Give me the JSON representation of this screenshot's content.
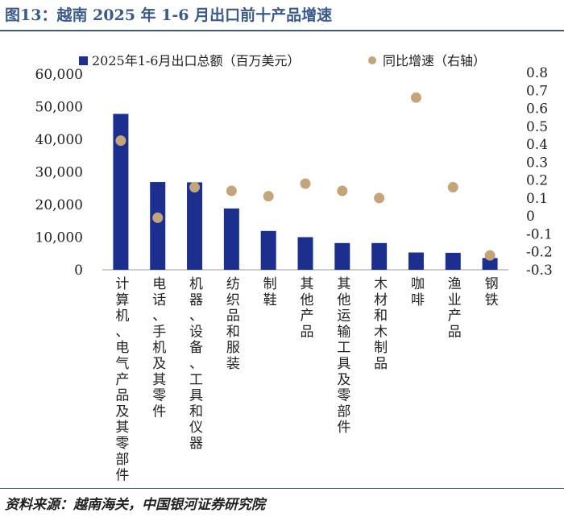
{
  "header": {
    "title": "图13：越南 2025 年 1-6 月出口前十产品增速"
  },
  "footer": {
    "source": "资料来源：越南海关，中国银河证券研究院"
  },
  "chart_data": {
    "type": "bar",
    "categories": [
      "计算机，电气产品及其零部件",
      "电话，手机及其零件",
      "机器，设备，工具和仪器",
      "纺织品和服装",
      "制鞋",
      "其他产品",
      "其他运输工具及零部件",
      "木材和木制品",
      "咖啡",
      "渔业产品",
      "钢铁"
    ],
    "category_labels": [
      "计算机、电气产品及其零部件",
      "电话、手机及其零件",
      "机器、设备、工具和仪器",
      "纺织品和服装",
      "制鞋",
      "其他产品",
      "其他运输工具及零部件",
      "木材和木制品",
      "咖啡",
      "渔业产品",
      "钢铁"
    ],
    "series": [
      {
        "name": "2025年1-6月出口总额（百万美元）",
        "type": "bar",
        "axis": "left",
        "color": "#1c2f8f",
        "values": [
          47800,
          26900,
          26800,
          18800,
          11900,
          10000,
          8200,
          8200,
          5300,
          5200,
          3600
        ]
      },
      {
        "name": "同比增速（右轴）",
        "type": "scatter",
        "axis": "right",
        "color": "#c4a57a",
        "values": [
          0.42,
          -0.01,
          0.16,
          0.14,
          0.11,
          0.18,
          0.14,
          0.1,
          0.66,
          0.16,
          -0.22
        ]
      }
    ],
    "left_axis": {
      "min": 0,
      "max": 60000,
      "ticks": [
        0,
        10000,
        20000,
        30000,
        40000,
        50000,
        60000
      ],
      "tick_labels": [
        "0",
        "10,000",
        "20,000",
        "30,000",
        "40,000",
        "50,000",
        "60,000"
      ]
    },
    "right_axis": {
      "min": -0.3,
      "max": 0.8,
      "ticks": [
        0.8,
        0.7,
        0.6,
        0.5,
        0.4,
        0.3,
        0.2,
        0.1,
        0,
        -0.1,
        -0.2,
        -0.3
      ],
      "tick_labels": [
        "0.8",
        "0.7",
        "0.6",
        "0.5",
        "0.4",
        "0.3",
        "0.2",
        "0.1",
        "0",
        "-0.1",
        "-0.2",
        "-0.3"
      ]
    },
    "legend": {
      "position": "top"
    }
  }
}
